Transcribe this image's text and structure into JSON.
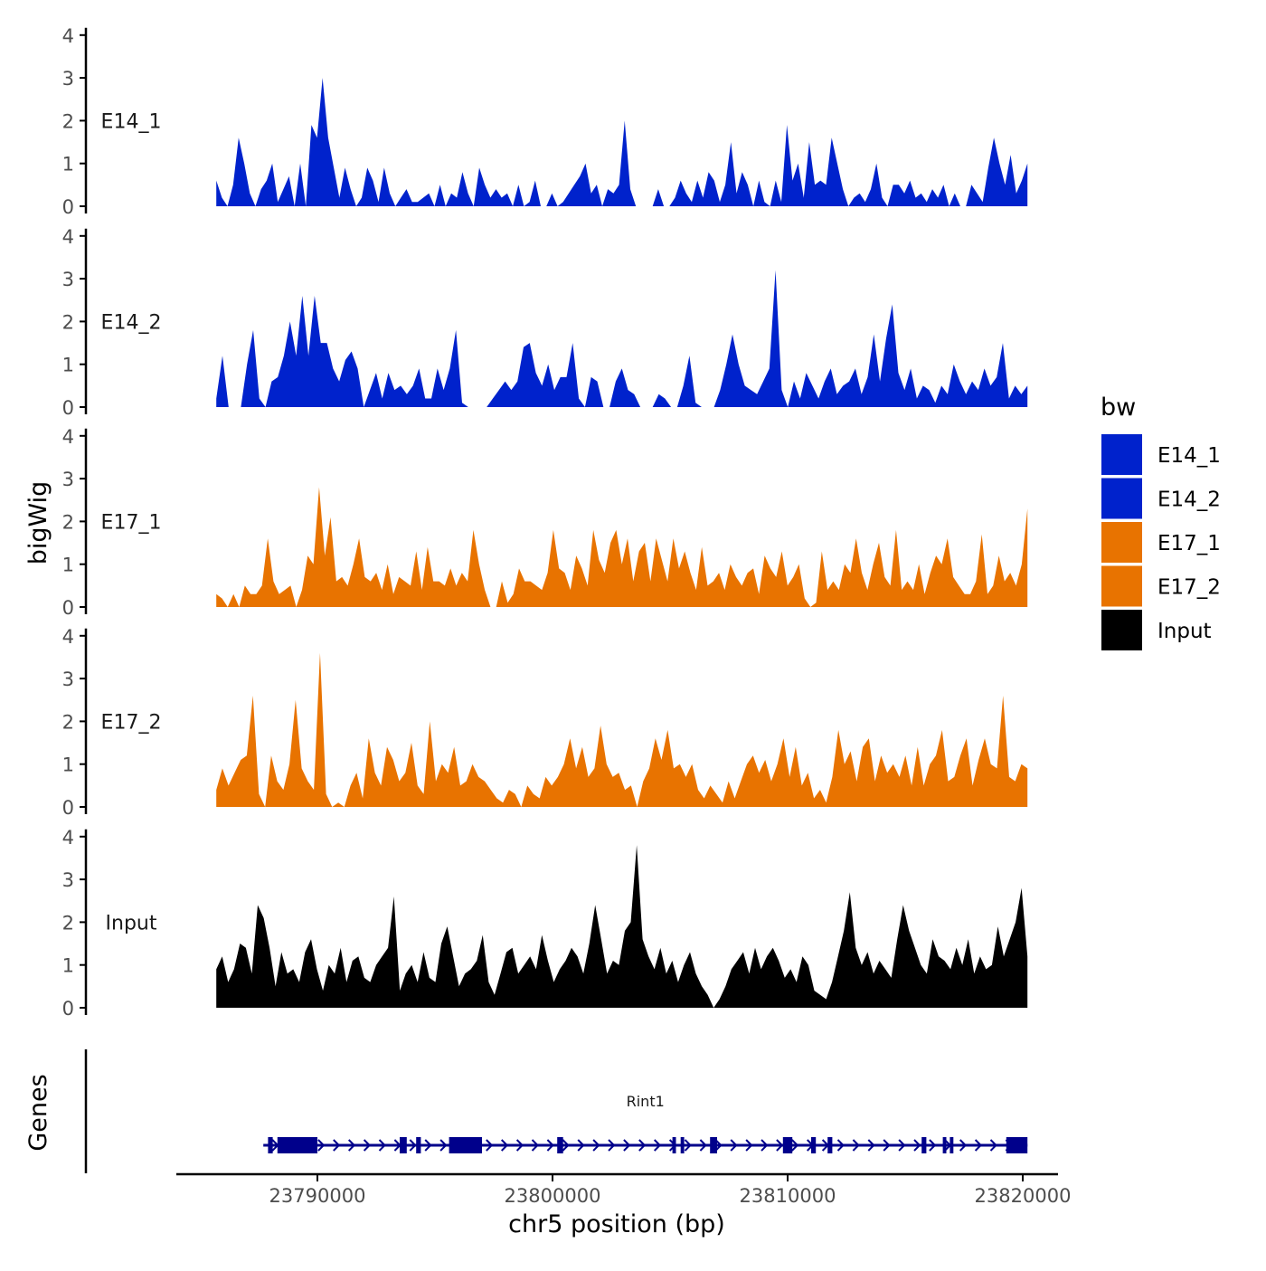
{
  "chart_data": {
    "type": "area",
    "title": "",
    "ylabel": "bigWig",
    "genes_label": "Genes",
    "xlabel": "chr5 position (bp)",
    "xlim": [
      23784000,
      23821500
    ],
    "data_x_range": [
      23785700,
      23820200
    ],
    "x_ticks": [
      23790000,
      23800000,
      23810000,
      23820000
    ],
    "x_tick_labels": [
      "23790000",
      "23800000",
      "23810000",
      "23820000"
    ],
    "ylim": [
      0,
      4
    ],
    "y_ticks": [
      0,
      1,
      2,
      3,
      4
    ],
    "y_tick_labels": [
      "0",
      "1",
      "2",
      "3",
      "4"
    ],
    "legend": {
      "title": "bw",
      "entries": [
        {
          "label": "E14_1",
          "color": "#0022cc"
        },
        {
          "label": "E14_2",
          "color": "#0022cc"
        },
        {
          "label": "E17_1",
          "color": "#e87300"
        },
        {
          "label": "E17_2",
          "color": "#e87300"
        },
        {
          "label": "Input",
          "color": "#000000"
        }
      ]
    },
    "series": [
      {
        "name": "E14_1",
        "color": "#0022cc",
        "values": [
          0.6,
          0.2,
          0,
          0.5,
          1.6,
          1.0,
          0.3,
          0,
          0.4,
          0.6,
          1.0,
          0.1,
          0.4,
          0.7,
          0,
          1.0,
          0,
          1.9,
          1.6,
          3.0,
          1.6,
          0.9,
          0.2,
          0.9,
          0.4,
          0,
          0.2,
          0.9,
          0.6,
          0.1,
          0.9,
          0.3,
          0,
          0.2,
          0.4,
          0.1,
          0.1,
          0.2,
          0.3,
          0,
          0.5,
          0,
          0.3,
          0.2,
          0.8,
          0.3,
          0,
          0.9,
          0.5,
          0.2,
          0.4,
          0.2,
          0.3,
          0,
          0.5,
          0,
          0.1,
          0.6,
          0,
          0,
          0.3,
          0,
          0.1,
          0.3,
          0.5,
          0.7,
          1.0,
          0.3,
          0.5,
          0,
          0.4,
          0.3,
          0.5,
          2.0,
          0.4,
          0,
          0,
          0,
          0,
          0.4,
          0,
          0,
          0.2,
          0.6,
          0.3,
          0.1,
          0.6,
          0.2,
          0.8,
          0.6,
          0.1,
          0.5,
          1.5,
          0.3,
          0.8,
          0.5,
          0,
          0.6,
          0.1,
          0,
          0.6,
          0.1,
          1.9,
          0.6,
          1.0,
          0.2,
          1.5,
          0.5,
          0.6,
          0.5,
          1.6,
          1.0,
          0.4,
          0,
          0.2,
          0.3,
          0.1,
          0.4,
          1.0,
          0.2,
          0,
          0.5,
          0.5,
          0.3,
          0.6,
          0.2,
          0.3,
          0.1,
          0.4,
          0.2,
          0.5,
          0,
          0.3,
          0,
          0,
          0.5,
          0.3,
          0.1,
          0.9,
          1.6,
          1.0,
          0.5,
          1.2,
          0.3,
          0.6,
          1.0
        ]
      },
      {
        "name": "E14_2",
        "color": "#0022cc",
        "values": [
          0.2,
          1.2,
          0,
          0,
          0,
          1.0,
          1.8,
          0.2,
          0,
          0.6,
          0.7,
          1.2,
          2.0,
          1.2,
          2.6,
          1.2,
          2.6,
          1.5,
          1.5,
          0.9,
          0.6,
          1.1,
          1.3,
          0.9,
          0,
          0.4,
          0.8,
          0.2,
          0.8,
          0.4,
          0.5,
          0.3,
          0.5,
          0.9,
          0.2,
          0.2,
          0.9,
          0.4,
          0.9,
          1.8,
          0.1,
          0,
          0,
          0,
          0,
          0.2,
          0.4,
          0.6,
          0.4,
          0.6,
          1.4,
          1.5,
          0.8,
          0.5,
          1.0,
          0.4,
          0.7,
          0.7,
          1.5,
          0.2,
          0,
          0.7,
          0.6,
          0,
          0,
          0.6,
          0.9,
          0.4,
          0.3,
          0,
          0,
          0,
          0.3,
          0.2,
          0,
          0,
          0.5,
          1.2,
          0.1,
          0,
          0,
          0,
          0.4,
          1.0,
          1.7,
          1.0,
          0.5,
          0.4,
          0.3,
          0.6,
          0.9,
          3.2,
          0.4,
          0,
          0.6,
          0.2,
          0.8,
          0.5,
          0.2,
          0.6,
          0.9,
          0.3,
          0.5,
          0.6,
          0.9,
          0.3,
          0.7,
          1.7,
          0.6,
          1.6,
          2.4,
          0.8,
          0.4,
          0.9,
          0.2,
          0.5,
          0.4,
          0.1,
          0.5,
          0.3,
          1.0,
          0.6,
          0.3,
          0.6,
          0.4,
          0.9,
          0.5,
          0.7,
          1.5,
          0.2,
          0.5,
          0.3,
          0.5
        ]
      },
      {
        "name": "E17_1",
        "color": "#e87300",
        "values": [
          0.3,
          0.2,
          0,
          0.3,
          0,
          0.5,
          0.3,
          0.3,
          0.5,
          1.6,
          0.6,
          0.3,
          0.4,
          0.5,
          0,
          0.4,
          1.2,
          1.0,
          2.8,
          1.2,
          2.1,
          0.6,
          0.7,
          0.5,
          1.0,
          1.6,
          0.7,
          0.6,
          0.8,
          0.4,
          1.0,
          0.3,
          0.7,
          0.6,
          0.5,
          1.3,
          0.4,
          1.4,
          0.6,
          0.6,
          0.5,
          0.9,
          0.5,
          0.8,
          0.6,
          1.8,
          1.0,
          0.4,
          0,
          0,
          0.6,
          0.1,
          0.3,
          0.9,
          0.6,
          0.6,
          0.5,
          0.4,
          0.8,
          1.8,
          0.9,
          0.8,
          0.4,
          1.2,
          0.9,
          0.5,
          1.8,
          1.1,
          0.8,
          1.5,
          1.8,
          1.0,
          1.6,
          0.6,
          1.3,
          1.5,
          0.6,
          1.6,
          1.1,
          0.6,
          1.6,
          0.9,
          1.3,
          0.8,
          0.4,
          1.4,
          0.5,
          0.6,
          0.8,
          0.4,
          1.0,
          0.7,
          0.5,
          0.8,
          0.9,
          0.3,
          1.2,
          0.9,
          0.7,
          1.3,
          0.5,
          0.7,
          1.0,
          0.2,
          0,
          0.1,
          1.3,
          0.4,
          0.6,
          0.4,
          1.0,
          0.8,
          1.6,
          0.8,
          0.4,
          1.0,
          1.5,
          0.7,
          0.5,
          1.8,
          0.4,
          0.6,
          0.4,
          1.0,
          0.3,
          0.8,
          1.2,
          1.0,
          1.6,
          0.7,
          0.5,
          0.3,
          0.3,
          0.6,
          1.7,
          0.3,
          0.5,
          1.2,
          0.6,
          0.8,
          0.5,
          1.0,
          2.3
        ]
      },
      {
        "name": "E17_2",
        "color": "#e87300",
        "values": [
          0.4,
          0.9,
          0.5,
          0.8,
          1.1,
          1.2,
          2.6,
          0.3,
          0,
          1.2,
          0.6,
          0.4,
          1.0,
          2.5,
          0.9,
          0.6,
          0.4,
          3.6,
          0.3,
          0,
          0.1,
          0,
          0.5,
          0.8,
          0.2,
          1.6,
          0.8,
          0.5,
          1.4,
          1.1,
          0.6,
          0.8,
          1.5,
          0.5,
          0.3,
          2.0,
          0.6,
          1.0,
          0.8,
          1.4,
          0.5,
          0.6,
          1.0,
          0.7,
          0.6,
          0.4,
          0.2,
          0.1,
          0.4,
          0.3,
          0,
          0.5,
          0.3,
          0.2,
          0.7,
          0.5,
          0.7,
          1.0,
          1.6,
          0.9,
          1.4,
          0.7,
          0.9,
          1.9,
          1.0,
          0.7,
          0.8,
          0.4,
          0.5,
          0,
          0.6,
          0.9,
          1.6,
          1.1,
          1.8,
          0.9,
          1.0,
          0.7,
          1.0,
          0.4,
          0.2,
          0.5,
          0.3,
          0.1,
          0.6,
          0.2,
          0.6,
          1.0,
          1.2,
          0.8,
          1.1,
          0.6,
          1.0,
          1.6,
          0.7,
          1.4,
          0.5,
          0.8,
          0.2,
          0.4,
          0.1,
          0.7,
          1.8,
          1.0,
          1.3,
          0.6,
          1.4,
          1.6,
          0.6,
          1.2,
          0.8,
          1.0,
          0.7,
          1.2,
          0.5,
          1.4,
          0.5,
          1.0,
          1.2,
          1.8,
          0.6,
          0.7,
          1.2,
          1.6,
          0.5,
          1.1,
          1.6,
          1.0,
          0.9,
          2.6,
          0.7,
          0.6,
          1.0,
          0.9
        ]
      },
      {
        "name": "Input",
        "color": "#000000",
        "values": [
          0.9,
          1.2,
          0.6,
          0.9,
          1.5,
          1.4,
          0.8,
          2.4,
          2.1,
          1.4,
          0.5,
          1.3,
          0.8,
          0.9,
          0.6,
          1.3,
          1.6,
          0.9,
          0.4,
          1.0,
          0.8,
          1.4,
          0.6,
          1.1,
          1.2,
          0.7,
          0.6,
          1.0,
          1.2,
          1.4,
          2.6,
          0.4,
          0.8,
          1.0,
          0.6,
          1.3,
          0.7,
          0.6,
          1.5,
          1.9,
          1.2,
          0.5,
          0.8,
          0.9,
          1.1,
          1.7,
          0.6,
          0.3,
          0.8,
          1.3,
          1.4,
          0.8,
          1.0,
          1.2,
          0.9,
          1.7,
          1.1,
          0.6,
          0.9,
          1.1,
          1.4,
          1.2,
          0.8,
          1.5,
          2.4,
          1.6,
          0.8,
          1.1,
          1.0,
          1.8,
          2.0,
          3.8,
          1.6,
          1.2,
          0.9,
          1.4,
          0.8,
          1.1,
          0.6,
          1.0,
          1.3,
          0.8,
          0.5,
          0.3,
          0,
          0.2,
          0.5,
          0.9,
          1.1,
          1.3,
          0.8,
          1.4,
          0.9,
          1.2,
          1.4,
          1.1,
          0.7,
          0.9,
          0.6,
          1.2,
          1.0,
          0.4,
          0.3,
          0.2,
          0.6,
          1.2,
          1.8,
          2.7,
          1.4,
          1.0,
          1.3,
          0.8,
          1.1,
          0.9,
          0.7,
          1.6,
          2.4,
          1.8,
          1.4,
          1.0,
          0.8,
          1.6,
          1.2,
          1.1,
          0.9,
          1.4,
          1.0,
          1.6,
          0.8,
          1.2,
          0.9,
          1.0,
          1.9,
          1.2,
          1.6,
          2.0,
          2.8,
          1.2
        ]
      }
    ],
    "gene_track": {
      "gene_name": "Rint1",
      "start": 23787700,
      "end": 23820200,
      "exons": [
        {
          "start": 23787900,
          "end": 23788100
        },
        {
          "start": 23788300,
          "end": 23790000
        },
        {
          "start": 23793500,
          "end": 23793800
        },
        {
          "start": 23794200,
          "end": 23794400
        },
        {
          "start": 23795600,
          "end": 23797000
        },
        {
          "start": 23800200,
          "end": 23800450
        },
        {
          "start": 23805100,
          "end": 23805250
        },
        {
          "start": 23805450,
          "end": 23805600
        },
        {
          "start": 23806700,
          "end": 23807000
        },
        {
          "start": 23809800,
          "end": 23810200
        },
        {
          "start": 23811000,
          "end": 23811200
        },
        {
          "start": 23811700,
          "end": 23811900
        },
        {
          "start": 23815700,
          "end": 23815900
        },
        {
          "start": 23816600,
          "end": 23816750
        },
        {
          "start": 23816900,
          "end": 23817050
        },
        {
          "start": 23819300,
          "end": 23820200
        }
      ]
    }
  }
}
